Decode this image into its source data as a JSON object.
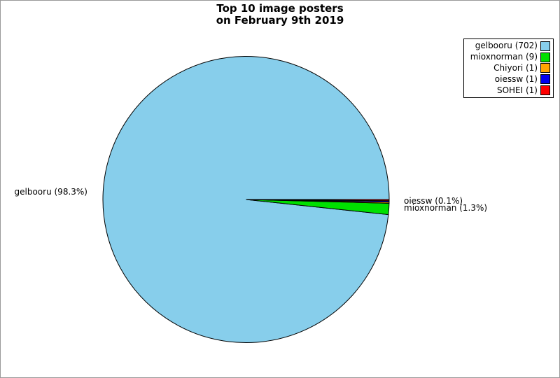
{
  "title": {
    "line1": "Top 10 image posters",
    "line2": "on February 9th 2019"
  },
  "chart_data": {
    "type": "pie",
    "title": "Top 10 image posters on February 9th 2019",
    "start_angle_deg": 0,
    "direction": "counterclockwise",
    "legend_position": "upper-right",
    "slices": [
      {
        "name": "gelbooru",
        "count": 702,
        "percent_label": "98.3%",
        "color": "#87CEEB",
        "legend_label": "gelbooru (702)",
        "pie_label": "gelbooru (98.3%)"
      },
      {
        "name": "mioxnorman",
        "count": 9,
        "percent_label": "1.3%",
        "color": "#00E000",
        "legend_label": "mioxnorman (9)",
        "pie_label": "mioxnorman (1.3%)"
      },
      {
        "name": "Chiyori",
        "count": 1,
        "percent_label": "0.1%",
        "color": "#FFA500",
        "legend_label": "Chiyori (1)",
        "pie_label": ""
      },
      {
        "name": "oiessw",
        "count": 1,
        "percent_label": "0.1%",
        "color": "#0000F0",
        "legend_label": "oiessw (1)",
        "pie_label": "oiessw (0.1%)"
      },
      {
        "name": "SOHEI",
        "count": 1,
        "percent_label": "0.1%",
        "color": "#FF0000",
        "legend_label": "SOHEI (1)",
        "pie_label": ""
      }
    ]
  },
  "labels": {
    "left": "gelbooru (98.3%)",
    "right_top": "oiessw (0.1%)",
    "right_bottom": "mioxnorman (1.3%)"
  },
  "frame": {
    "background": "#FFFFFF",
    "border_color": "#999999",
    "wedge_outline": "#000000"
  }
}
